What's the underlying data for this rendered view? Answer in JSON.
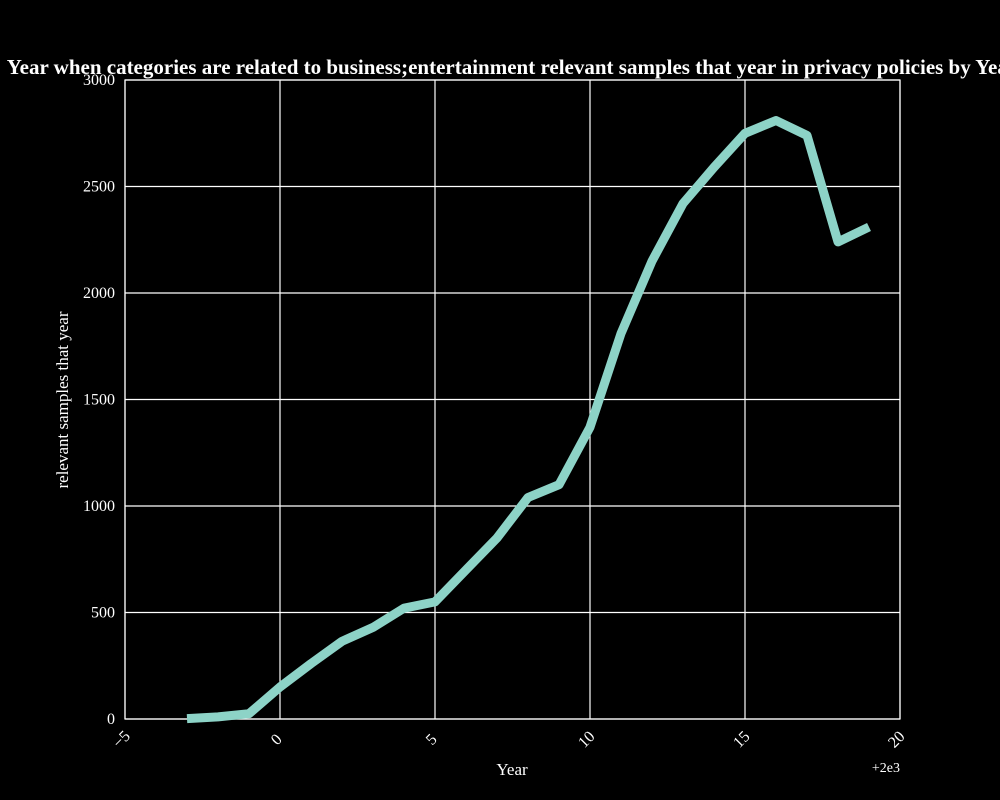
{
  "chart_data": {
    "type": "line",
    "title": "Year when categories are related to business;entertainment relevant samples that year in privacy policies by Year",
    "xlabel": "Year",
    "ylabel": "relevant samples that year",
    "x_offset_label": "+2e3",
    "xlim": [
      -5,
      20
    ],
    "ylim": [
      0,
      3000
    ],
    "x_ticks": [
      "−5",
      "0",
      "5",
      "10",
      "15",
      "20"
    ],
    "x_tick_values": [
      -5,
      0,
      5,
      10,
      15,
      20
    ],
    "y_ticks": [
      "0",
      "500",
      "1000",
      "1500",
      "2000",
      "2500",
      "3000"
    ],
    "y_tick_values": [
      0,
      500,
      1000,
      1500,
      2000,
      2500,
      3000
    ],
    "grid": true,
    "series": [
      {
        "color": "#8dd3c7",
        "x": [
          -3,
          -2,
          -1,
          0,
          1,
          2,
          3,
          4,
          5,
          6,
          7,
          8,
          9,
          10,
          11,
          12,
          13,
          14,
          15,
          16,
          17,
          18,
          19
        ],
        "y": [
          2,
          10,
          25,
          150,
          260,
          365,
          430,
          520,
          550,
          700,
          850,
          1040,
          1100,
          1370,
          1810,
          2150,
          2420,
          2590,
          2750,
          2810,
          2740,
          2240,
          2310
        ]
      }
    ]
  }
}
